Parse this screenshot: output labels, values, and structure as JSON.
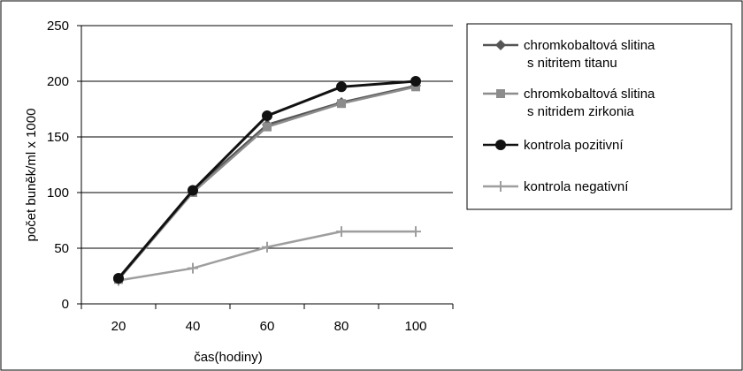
{
  "chart_data": {
    "type": "line",
    "title": "",
    "xlabel": "čas(hodiny)",
    "ylabel": "počet buněk/ml  x  1000",
    "categories": [
      "20",
      "40",
      "60",
      "80",
      "100"
    ],
    "ylim": [
      0,
      250
    ],
    "yticks": [
      0,
      50,
      100,
      150,
      200,
      250
    ],
    "grid": "horizontal",
    "legend_position": "right",
    "series": [
      {
        "name_lines": [
          "chromkobaltová slitina",
          "s nitritem titanu"
        ],
        "marker": "diamond",
        "color": "#555555",
        "values": [
          22,
          102,
          161,
          181,
          196
        ]
      },
      {
        "name_lines": [
          "chromkobaltová slitina",
          "s nitridem zirkonia"
        ],
        "marker": "square",
        "color": "#8c8c8c",
        "values": [
          22,
          100,
          159,
          180,
          195
        ]
      },
      {
        "name_lines": [
          "kontrola pozitivní"
        ],
        "marker": "circle",
        "color": "#111111",
        "values": [
          23,
          102,
          169,
          195,
          200
        ]
      },
      {
        "name_lines": [
          "kontrola negativní"
        ],
        "marker": "plus",
        "color": "#9e9e9e",
        "values": [
          21,
          32,
          51,
          65,
          65
        ]
      }
    ]
  }
}
